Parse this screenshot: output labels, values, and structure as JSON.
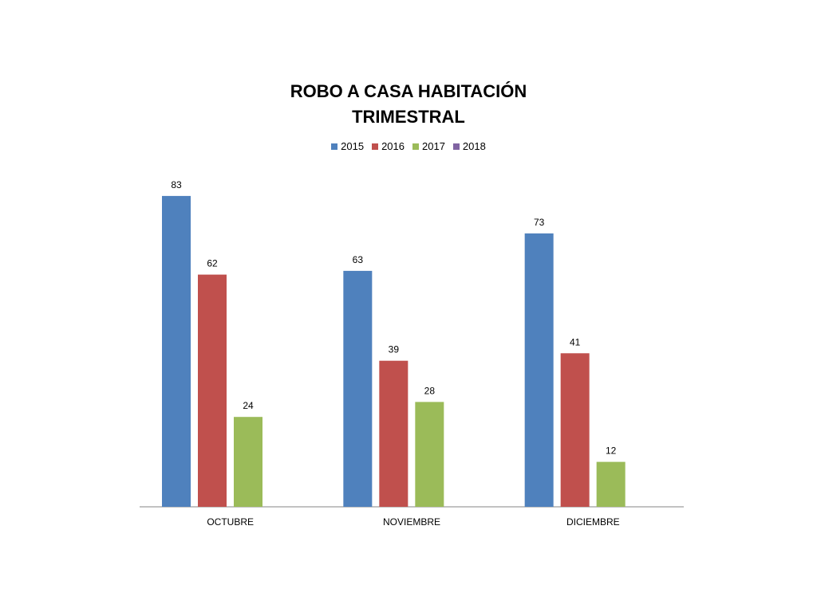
{
  "chart_data": {
    "type": "bar",
    "title_lines": [
      "ROBO A CASA HABITACIÓN",
      "TRIMESTRAL"
    ],
    "categories": [
      "OCTUBRE",
      "NOVIEMBRE",
      "DICIEMBRE"
    ],
    "series": [
      {
        "name": "2015",
        "color": "#4F81BD",
        "values": [
          83,
          63,
          73
        ]
      },
      {
        "name": "2016",
        "color": "#C0504D",
        "values": [
          62,
          39,
          41
        ]
      },
      {
        "name": "2017",
        "color": "#9BBB59",
        "values": [
          24,
          28,
          12
        ]
      },
      {
        "name": "2018",
        "color": "#8064A2",
        "values": [
          null,
          null,
          null
        ]
      }
    ],
    "ylim": [
      0,
      90
    ],
    "legend": "top",
    "grid": false,
    "data_labels": true
  }
}
